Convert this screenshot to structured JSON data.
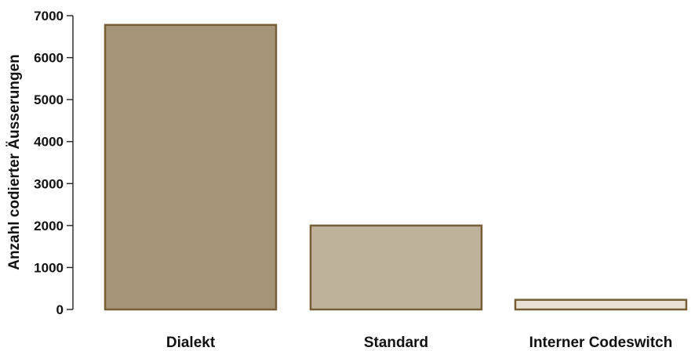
{
  "chart_data": {
    "type": "bar",
    "categories": [
      "Dialekt",
      "Standard",
      "Interner Codeswitch"
    ],
    "values": [
      6780,
      2000,
      230
    ],
    "ylabel": "Anzahl codierter Äusserungen",
    "xlabel": "",
    "ylim": [
      0,
      7000
    ],
    "yticks": [
      "0",
      "1000",
      "2000",
      "3000",
      "4000",
      "5000",
      "6000",
      "7000"
    ],
    "grid": false,
    "legend": "none",
    "colors": {
      "fills": [
        "#a59576",
        "#bfb29b",
        "#e8e1d4"
      ],
      "stroke": "#765f37"
    }
  }
}
